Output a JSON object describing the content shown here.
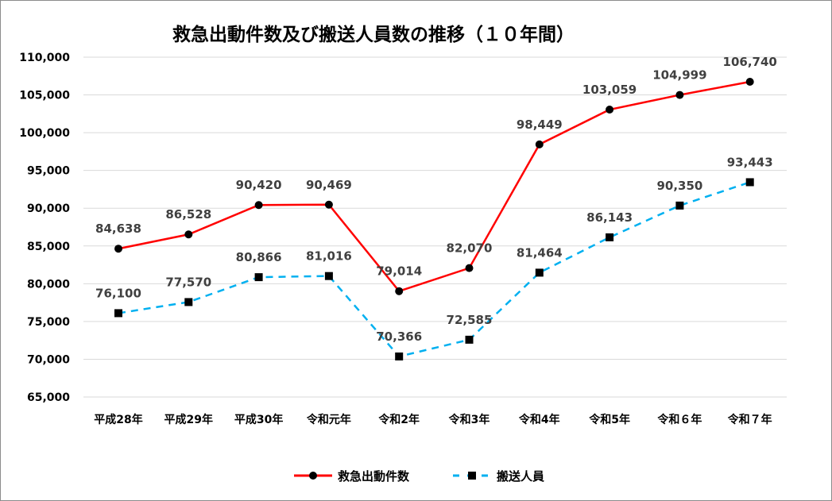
{
  "chart_data": {
    "type": "line",
    "title": "救急出動件数及び搬送人員数の推移（１０年間）",
    "categories": [
      "平成28年",
      "平成29年",
      "平成30年",
      "令和元年",
      "令和2年",
      "令和3年",
      "令和4年",
      "令和5年",
      "令和６年",
      "令和７年"
    ],
    "ylim": [
      65000,
      110000
    ],
    "yticks": [
      65000,
      70000,
      75000,
      80000,
      85000,
      90000,
      95000,
      100000,
      105000,
      110000
    ],
    "ytick_labels": [
      "65,000",
      "70,000",
      "75,000",
      "80,000",
      "85,000",
      "90,000",
      "95,000",
      "100,000",
      "105,000",
      "110,000"
    ],
    "grid": true,
    "legend_position": "bottom",
    "series": [
      {
        "name": "救急出動件数",
        "color": "#ff0000",
        "style": "solid",
        "marker": "circle",
        "values": [
          84638,
          86528,
          90420,
          90469,
          79014,
          82070,
          98449,
          103059,
          104999,
          106740
        ],
        "labels": [
          "84,638",
          "86,528",
          "90,420",
          "90,469",
          "79,014",
          "82,070",
          "98,449",
          "103,059",
          "104,999",
          "106,740"
        ]
      },
      {
        "name": "搬送人員",
        "color": "#00b0f0",
        "style": "dashed",
        "marker": "square",
        "values": [
          76100,
          77570,
          80866,
          81016,
          70366,
          72585,
          81464,
          86143,
          90350,
          93443
        ],
        "labels": [
          "76,100",
          "77,570",
          "80,866",
          "81,016",
          "70,366",
          "72,585",
          "81,464",
          "86,143",
          "90,350",
          "93,443"
        ]
      }
    ]
  }
}
